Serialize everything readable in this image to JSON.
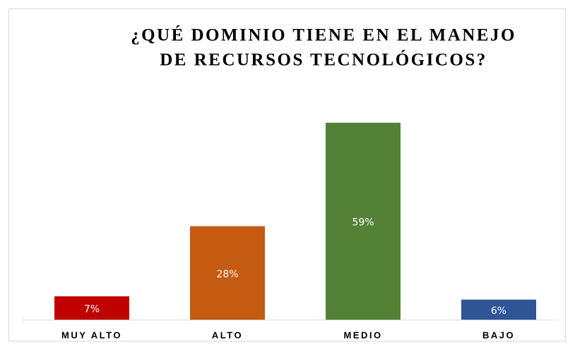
{
  "chart_data": {
    "type": "bar",
    "title": [
      "¿QUÉ DOMINIO TIENE EN EL MANEJO",
      "DE RECURSOS TECNOLÓGICOS?"
    ],
    "categories": [
      "MUY ALTO",
      "ALTO",
      "MEDIO",
      "BAJO"
    ],
    "values": [
      7,
      28,
      59,
      6
    ],
    "value_labels": [
      "7%",
      "28%",
      "59%",
      "6%"
    ],
    "colors": [
      "#c00000",
      "#c55a11",
      "#538135",
      "#2f5597"
    ]
  }
}
